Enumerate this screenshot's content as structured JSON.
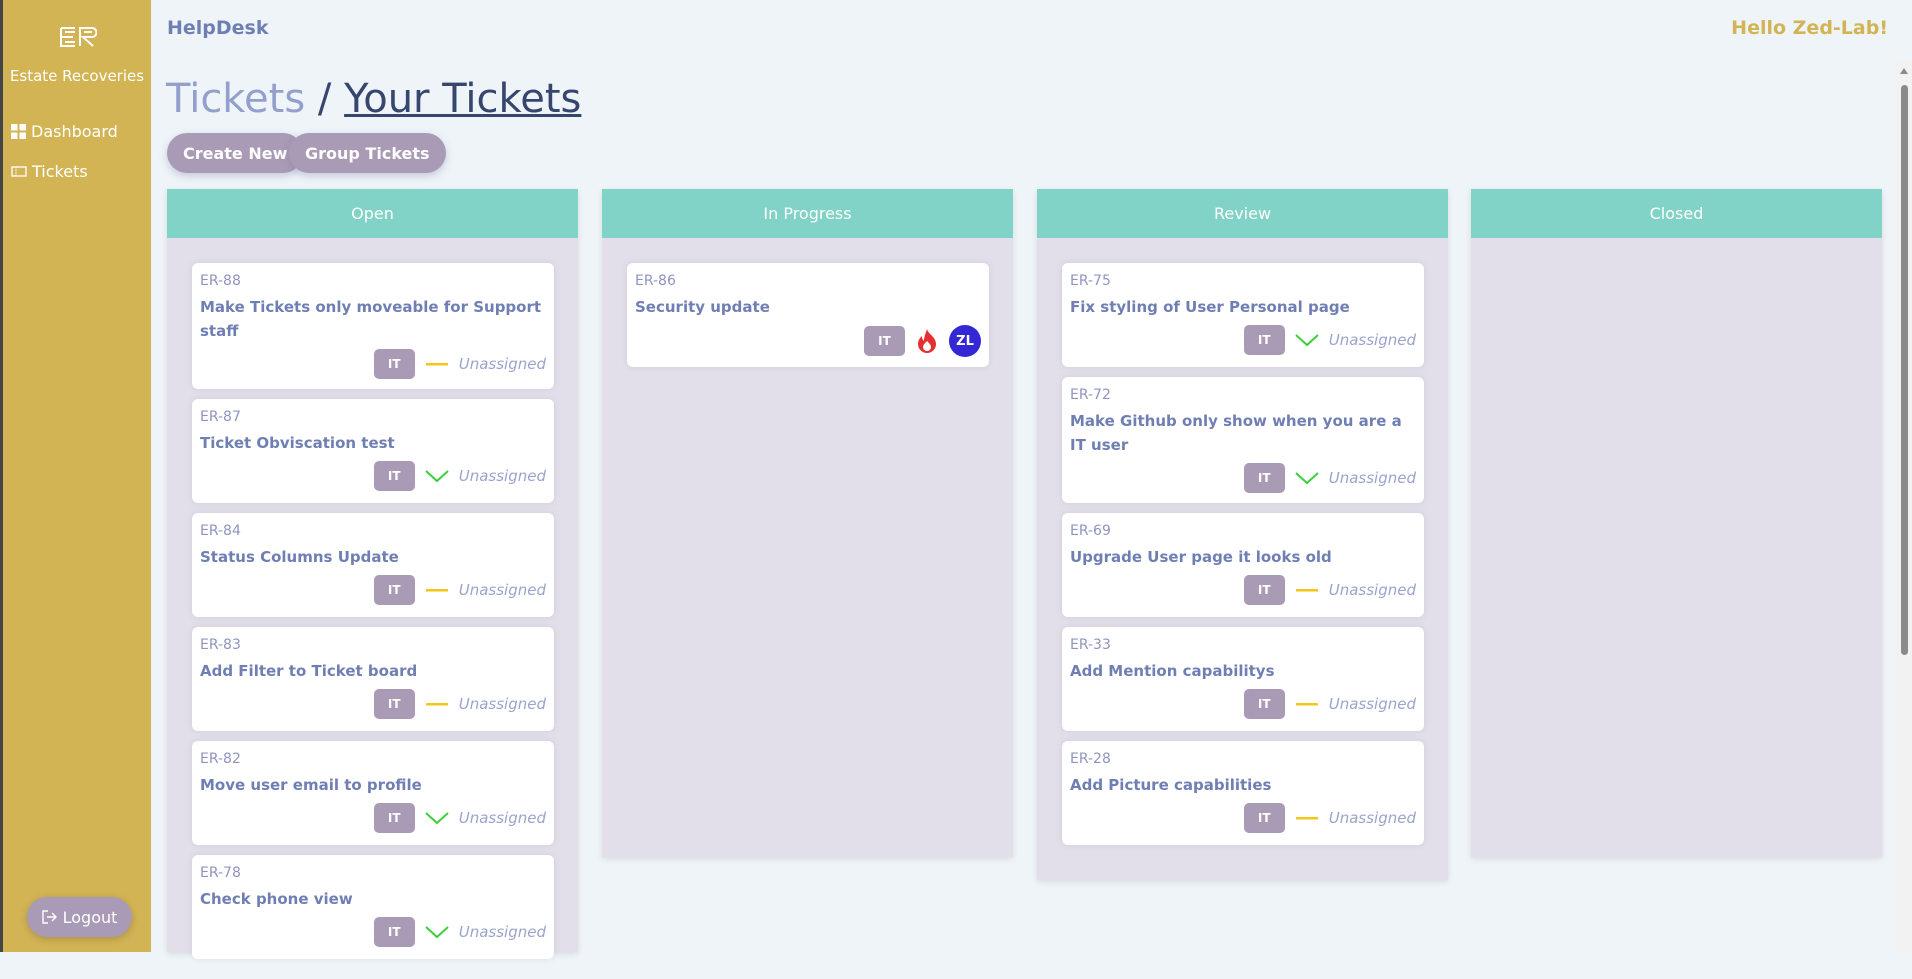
{
  "sidebar": {
    "brand": "Estate Recoveries",
    "logo_text": "ER",
    "items": [
      {
        "label": "Dashboard",
        "icon": "grid-icon"
      },
      {
        "label": "Tickets",
        "icon": "ticket-icon"
      }
    ],
    "logout": "Logout"
  },
  "header": {
    "app": "HelpDesk",
    "greeting": "Hello Zed-Lab!"
  },
  "breadcrumb": {
    "parent": "Tickets",
    "sep": "/",
    "current": "Your Tickets"
  },
  "toolbar": {
    "create": "Create New",
    "group": "Group Tickets"
  },
  "colors": {
    "accent": "#80d3c6",
    "sidebar": "#d3b455",
    "tag": "#a99ab5",
    "medium": "#f5c518",
    "low": "#3ccf3c",
    "high": "#e53030"
  },
  "columns": [
    {
      "name": "Open",
      "cards": [
        {
          "id": "ER-88",
          "title": "Make Tickets only moveable for Support staff",
          "tag": "IT",
          "priority": "medium",
          "assignee": "Unassigned"
        },
        {
          "id": "ER-87",
          "title": "Ticket Obviscation test",
          "tag": "IT",
          "priority": "low",
          "assignee": "Unassigned"
        },
        {
          "id": "ER-84",
          "title": "Status Columns Update",
          "tag": "IT",
          "priority": "medium",
          "assignee": "Unassigned"
        },
        {
          "id": "ER-83",
          "title": "Add Filter to Ticket board",
          "tag": "IT",
          "priority": "medium",
          "assignee": "Unassigned"
        },
        {
          "id": "ER-82",
          "title": "Move user email to profile",
          "tag": "IT",
          "priority": "low",
          "assignee": "Unassigned"
        },
        {
          "id": "ER-78",
          "title": "Check phone view",
          "tag": "IT",
          "priority": "low",
          "assignee": "Unassigned"
        }
      ]
    },
    {
      "name": "In Progress",
      "cards": [
        {
          "id": "ER-86",
          "title": "Security update",
          "tag": "IT",
          "priority": "high",
          "avatar": "ZL"
        }
      ]
    },
    {
      "name": "Review",
      "cards": [
        {
          "id": "ER-75",
          "title": "Fix styling of User Personal page",
          "tag": "IT",
          "priority": "low",
          "assignee": "Unassigned"
        },
        {
          "id": "ER-72",
          "title": "Make Github only show when you are a IT user",
          "tag": "IT",
          "priority": "low",
          "assignee": "Unassigned"
        },
        {
          "id": "ER-69",
          "title": "Upgrade User page it looks old",
          "tag": "IT",
          "priority": "medium",
          "assignee": "Unassigned"
        },
        {
          "id": "ER-33",
          "title": "Add Mention capabilitys",
          "tag": "IT",
          "priority": "medium",
          "assignee": "Unassigned"
        },
        {
          "id": "ER-28",
          "title": "Add Picture capabilities",
          "tag": "IT",
          "priority": "medium",
          "assignee": "Unassigned"
        }
      ]
    },
    {
      "name": "Closed",
      "cards": []
    }
  ]
}
